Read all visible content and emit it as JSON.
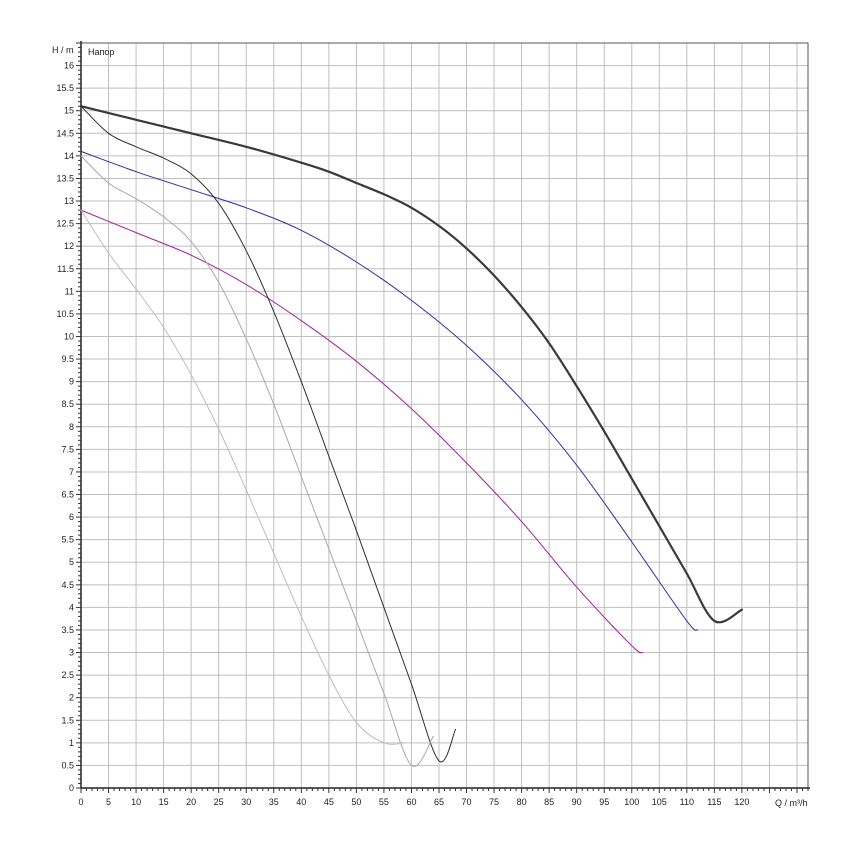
{
  "chart_data": {
    "type": "line",
    "title": "",
    "xlabel": "Q / m³/h",
    "ylabel": "H / m",
    "series_label": "Напор",
    "xlim": [
      0,
      132
    ],
    "ylim": [
      0,
      16.5
    ],
    "grid": true,
    "x_ticks": [
      0,
      5,
      10,
      15,
      20,
      25,
      30,
      35,
      40,
      45,
      50,
      55,
      60,
      65,
      70,
      75,
      80,
      85,
      90,
      95,
      100,
      105,
      110,
      115,
      120
    ],
    "y_ticks": [
      0,
      0.5,
      1,
      1.5,
      2,
      2.5,
      3,
      3.5,
      4,
      4.5,
      5,
      5.5,
      6,
      6.5,
      7,
      7.5,
      8,
      8.5,
      9,
      9.5,
      10,
      10.5,
      11,
      11.5,
      12,
      12.5,
      13,
      13.5,
      14,
      14.5,
      15,
      15.5,
      16
    ],
    "series": [
      {
        "color": "#3a3a3a",
        "width": 2.2,
        "x": [
          0,
          10,
          20,
          30,
          40,
          45,
          50,
          55,
          60,
          65,
          70,
          75,
          80,
          85,
          90,
          95,
          100,
          105,
          110,
          115,
          120
        ],
        "y": [
          15.1,
          14.8,
          14.5,
          14.2,
          13.85,
          13.65,
          13.4,
          13.15,
          12.85,
          12.45,
          11.95,
          11.35,
          10.65,
          9.85,
          8.9,
          7.9,
          6.85,
          5.8,
          4.75,
          3.7,
          3.95
        ]
      },
      {
        "color": "#2e2e9e",
        "width": 1,
        "x": [
          0,
          10,
          20,
          30,
          40,
          50,
          60,
          70,
          80,
          90,
          100,
          110,
          112
        ],
        "y": [
          14.1,
          13.65,
          13.25,
          12.85,
          12.35,
          11.65,
          10.8,
          9.8,
          8.6,
          7.15,
          5.45,
          3.7,
          3.5
        ]
      },
      {
        "color": "#a020a0",
        "width": 1,
        "x": [
          0,
          10,
          20,
          30,
          40,
          50,
          60,
          70,
          80,
          90,
          100,
          102
        ],
        "y": [
          12.8,
          12.3,
          11.8,
          11.15,
          10.35,
          9.45,
          8.4,
          7.2,
          5.9,
          4.45,
          3.15,
          3.0
        ]
      },
      {
        "color": "#303030",
        "width": 1,
        "x": [
          0,
          5,
          10,
          15,
          20,
          25,
          30,
          35,
          40,
          45,
          50,
          55,
          60,
          65,
          68
        ],
        "y": [
          15.1,
          14.5,
          14.2,
          13.95,
          13.6,
          12.95,
          11.9,
          10.55,
          9.0,
          7.35,
          5.7,
          4.0,
          2.3,
          0.6,
          1.3
        ]
      },
      {
        "color": "#a8a8a8",
        "width": 1,
        "x": [
          0,
          5,
          10,
          15,
          20,
          25,
          30,
          35,
          40,
          45,
          50,
          55,
          60,
          64
        ],
        "y": [
          14.0,
          13.4,
          13.05,
          12.65,
          12.1,
          11.2,
          9.95,
          8.5,
          6.9,
          5.3,
          3.7,
          2.1,
          0.5,
          1.15
        ]
      },
      {
        "color": "#bdbdbd",
        "width": 1,
        "x": [
          0,
          5,
          10,
          15,
          20,
          25,
          30,
          35,
          40,
          45,
          50,
          55,
          59
        ],
        "y": [
          12.8,
          11.85,
          11.05,
          10.2,
          9.15,
          7.95,
          6.6,
          5.2,
          3.8,
          2.5,
          1.45,
          1.0,
          1.0
        ]
      }
    ]
  }
}
